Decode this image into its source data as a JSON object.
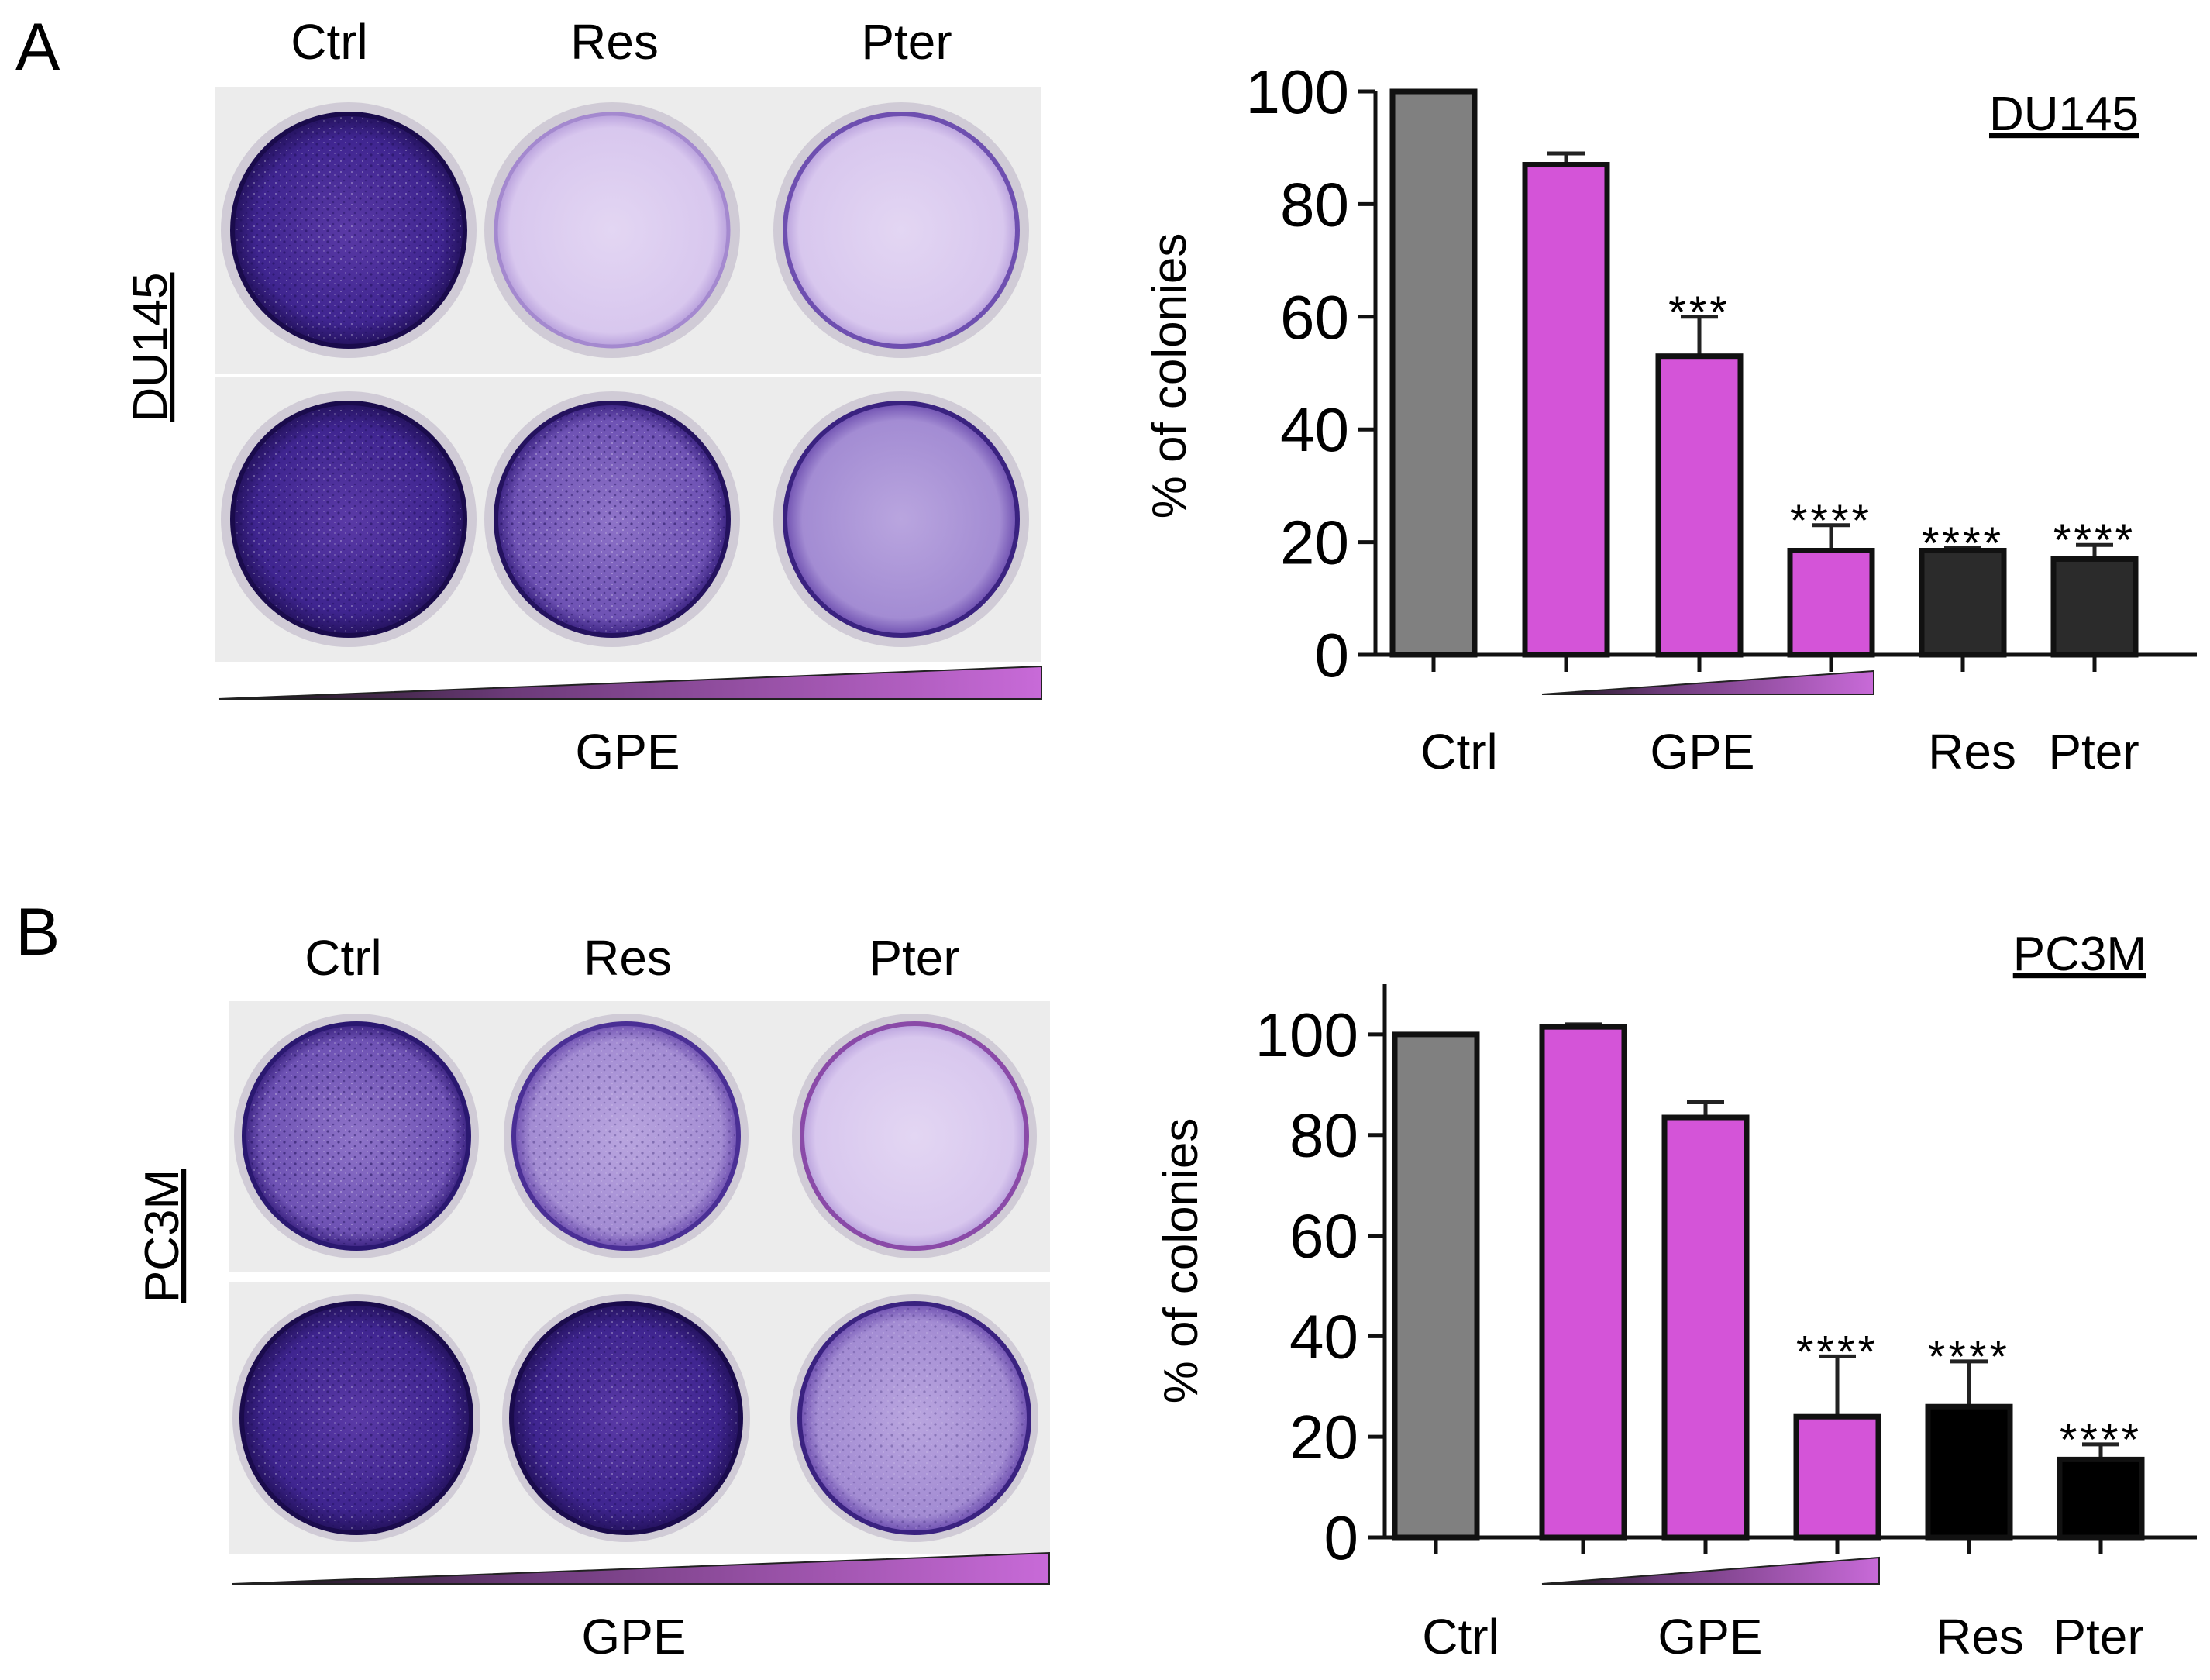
{
  "panels": [
    {
      "letter": "A",
      "cell_line": "DU145",
      "plate": {
        "column_labels": [
          "Ctrl",
          "Res",
          "Pter"
        ],
        "gradient_label": "GPE",
        "wells_top": [
          "dense",
          "light",
          "light"
        ],
        "wells_bottom": [
          "dense",
          "dense",
          "medium-light"
        ]
      }
    },
    {
      "letter": "B",
      "cell_line": "PC3M",
      "plate": {
        "column_labels": [
          "Ctrl",
          "Res",
          "Pter"
        ],
        "gradient_label": "GPE",
        "wells_top": [
          "medium",
          "medium-light",
          "light"
        ],
        "wells_bottom": [
          "dense",
          "dense",
          "medium-light"
        ]
      }
    }
  ],
  "colors": {
    "ctrl": "#808080",
    "gpe": "#d454d8",
    "compound_dark": "#2b2b2b",
    "compound_black": "#000000",
    "gradient_dark": "#111111",
    "gradient_light": "#c86ad8",
    "stain_dense": "#3b1e86",
    "stain_light": "#d9c8ee"
  },
  "chart_data": [
    {
      "type": "bar",
      "title": "DU145",
      "ylabel": "% of colonies",
      "ylim": [
        0,
        100
      ],
      "yticks": [
        0,
        20,
        40,
        60,
        80,
        100
      ],
      "x_group_labels": [
        "Ctrl",
        "GPE",
        "Res",
        "Pter"
      ],
      "bars": [
        {
          "group": "Ctrl",
          "value": 100,
          "error": 0,
          "sig": "",
          "color_key": "ctrl"
        },
        {
          "group": "GPE",
          "value": 87,
          "error": 2,
          "sig": "",
          "color_key": "gpe"
        },
        {
          "group": "GPE",
          "value": 53,
          "error": 7,
          "sig": "***",
          "color_key": "gpe"
        },
        {
          "group": "GPE",
          "value": 18.5,
          "error": 4.5,
          "sig": "****",
          "color_key": "gpe"
        },
        {
          "group": "Res",
          "value": 18.5,
          "error": 0.5,
          "sig": "****",
          "color_key": "compound_dark"
        },
        {
          "group": "Pter",
          "value": 17,
          "error": 2.5,
          "sig": "****",
          "color_key": "compound_dark"
        }
      ]
    },
    {
      "type": "bar",
      "title": "PC3M",
      "ylabel": "% of colonies",
      "ylim": [
        0,
        110
      ],
      "yticks": [
        0,
        20,
        40,
        60,
        80,
        100
      ],
      "x_group_labels": [
        "Ctrl",
        "GPE",
        "Res",
        "Pter"
      ],
      "bars": [
        {
          "group": "Ctrl",
          "value": 100,
          "error": 0,
          "sig": "",
          "color_key": "ctrl"
        },
        {
          "group": "GPE",
          "value": 101.5,
          "error": 0.5,
          "sig": "",
          "color_key": "gpe"
        },
        {
          "group": "GPE",
          "value": 83.5,
          "error": 3,
          "sig": "",
          "color_key": "gpe"
        },
        {
          "group": "GPE",
          "value": 24,
          "error": 12,
          "sig": "****",
          "color_key": "gpe"
        },
        {
          "group": "Res",
          "value": 26,
          "error": 9,
          "sig": "****",
          "color_key": "compound_black"
        },
        {
          "group": "Pter",
          "value": 15.5,
          "error": 3,
          "sig": "****",
          "color_key": "compound_black"
        }
      ]
    }
  ]
}
